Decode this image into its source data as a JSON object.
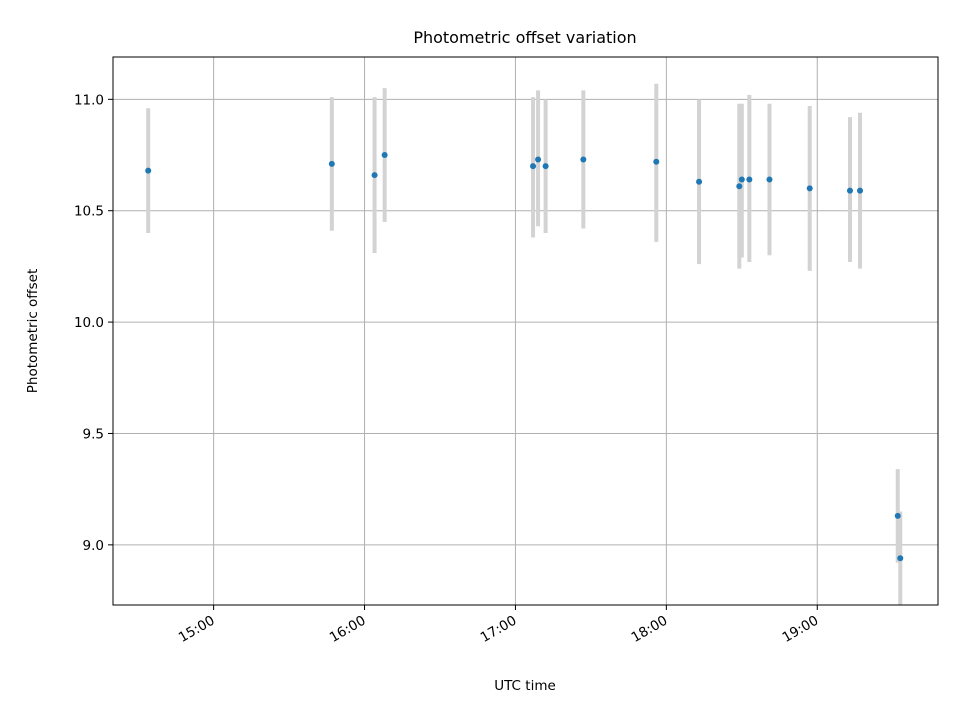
{
  "chart_data": {
    "type": "scatter",
    "title": "Photometric offset variation",
    "xlabel": "UTC time",
    "ylabel": "Photometric offset",
    "xlim": [
      "14:20",
      "19:48"
    ],
    "ylim": [
      8.73,
      11.19
    ],
    "x_ticks": [
      "15:00",
      "16:00",
      "17:00",
      "18:00",
      "19:00"
    ],
    "y_ticks": [
      9.0,
      9.5,
      10.0,
      10.5,
      11.0
    ],
    "grid": true,
    "marker_color": "#1f77b4",
    "errorbar_color": "#d3d3d3",
    "series": [
      {
        "points": [
          {
            "t": "14:34",
            "y": 10.68,
            "err_low": 10.4,
            "err_high": 10.96
          },
          {
            "t": "15:47",
            "y": 10.71,
            "err_low": 10.41,
            "err_high": 11.01
          },
          {
            "t": "16:04",
            "y": 10.66,
            "err_low": 10.31,
            "err_high": 11.01
          },
          {
            "t": "16:08",
            "y": 10.75,
            "err_low": 10.45,
            "err_high": 11.05
          },
          {
            "t": "17:07",
            "y": 10.7,
            "err_low": 10.38,
            "err_high": 11.01
          },
          {
            "t": "17:09",
            "y": 10.73,
            "err_low": 10.43,
            "err_high": 11.04
          },
          {
            "t": "17:12",
            "y": 10.7,
            "err_low": 10.4,
            "err_high": 11.0
          },
          {
            "t": "17:27",
            "y": 10.73,
            "err_low": 10.42,
            "err_high": 11.04
          },
          {
            "t": "17:56",
            "y": 10.72,
            "err_low": 10.36,
            "err_high": 11.07
          },
          {
            "t": "18:13",
            "y": 10.63,
            "err_low": 10.26,
            "err_high": 11.0
          },
          {
            "t": "18:29",
            "y": 10.61,
            "err_low": 10.24,
            "err_high": 10.98
          },
          {
            "t": "18:30",
            "y": 10.64,
            "err_low": 10.29,
            "err_high": 10.98
          },
          {
            "t": "18:33",
            "y": 10.64,
            "err_low": 10.27,
            "err_high": 11.02
          },
          {
            "t": "18:41",
            "y": 10.64,
            "err_low": 10.3,
            "err_high": 10.98
          },
          {
            "t": "18:57",
            "y": 10.6,
            "err_low": 10.23,
            "err_high": 10.97
          },
          {
            "t": "19:13",
            "y": 10.59,
            "err_low": 10.27,
            "err_high": 10.92
          },
          {
            "t": "19:17",
            "y": 10.59,
            "err_low": 10.24,
            "err_high": 10.94
          },
          {
            "t": "19:32",
            "y": 9.13,
            "err_low": 8.92,
            "err_high": 9.34
          },
          {
            "t": "19:33",
            "y": 8.94,
            "err_low": 8.73,
            "err_high": 9.15
          }
        ]
      }
    ]
  }
}
